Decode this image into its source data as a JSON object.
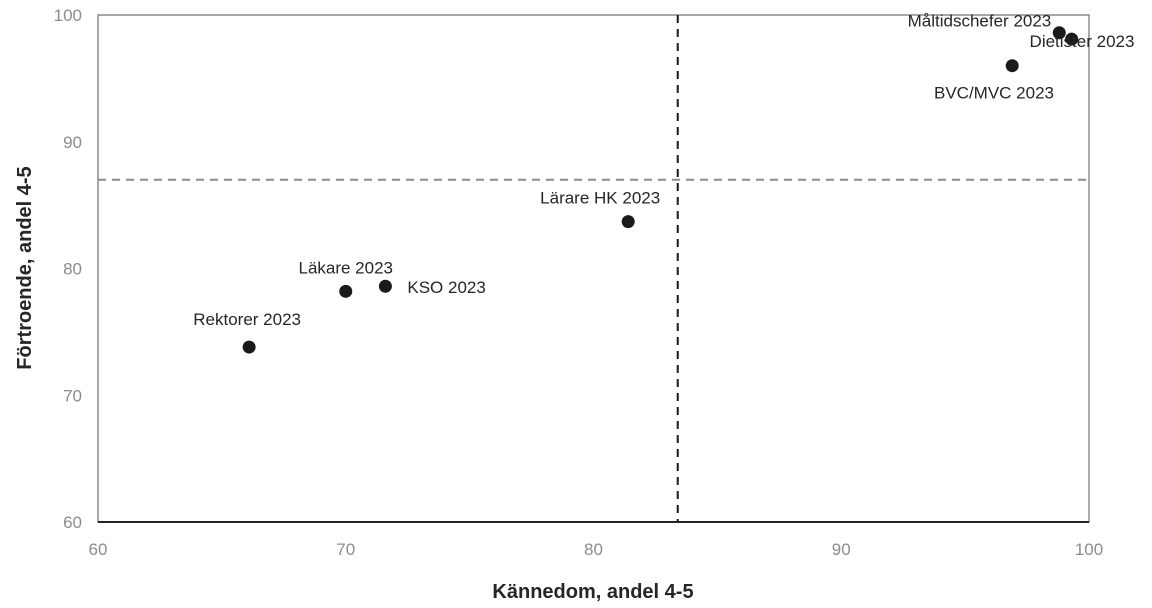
{
  "chart_data": {
    "type": "scatter",
    "xlabel": "Kännedom, andel 4-5",
    "ylabel": "Förtroende, andel 4-5",
    "xlim": [
      60,
      100
    ],
    "ylim": [
      60,
      100
    ],
    "x_ticks": [
      "60",
      "70",
      "80",
      "90",
      "100"
    ],
    "y_ticks": [
      "60",
      "70",
      "80",
      "90",
      "100"
    ],
    "reference_lines": {
      "vertical_x": 83.4,
      "horizontal_y": 87
    },
    "points": [
      {
        "label": "Måltidschefer 2023",
        "x": 98.8,
        "y": 98.6
      },
      {
        "label": "Dietister 2023",
        "x": 99.3,
        "y": 98.1
      },
      {
        "label": "BVC/MVC 2023",
        "x": 96.9,
        "y": 96.0
      },
      {
        "label": "Lärare HK 2023",
        "x": 81.4,
        "y": 83.7
      },
      {
        "label": "KSO 2023",
        "x": 71.6,
        "y": 78.6
      },
      {
        "label": "Läkare 2023",
        "x": 70.0,
        "y": 78.2
      },
      {
        "label": "Rektorer 2023",
        "x": 66.1,
        "y": 73.8
      }
    ],
    "grid": false,
    "colors": {
      "marker": "#1a1a1a",
      "axis": "#8c8c8c",
      "vertical_ref": "#1a1a1a",
      "horizontal_ref": "#8c8c8c"
    }
  }
}
